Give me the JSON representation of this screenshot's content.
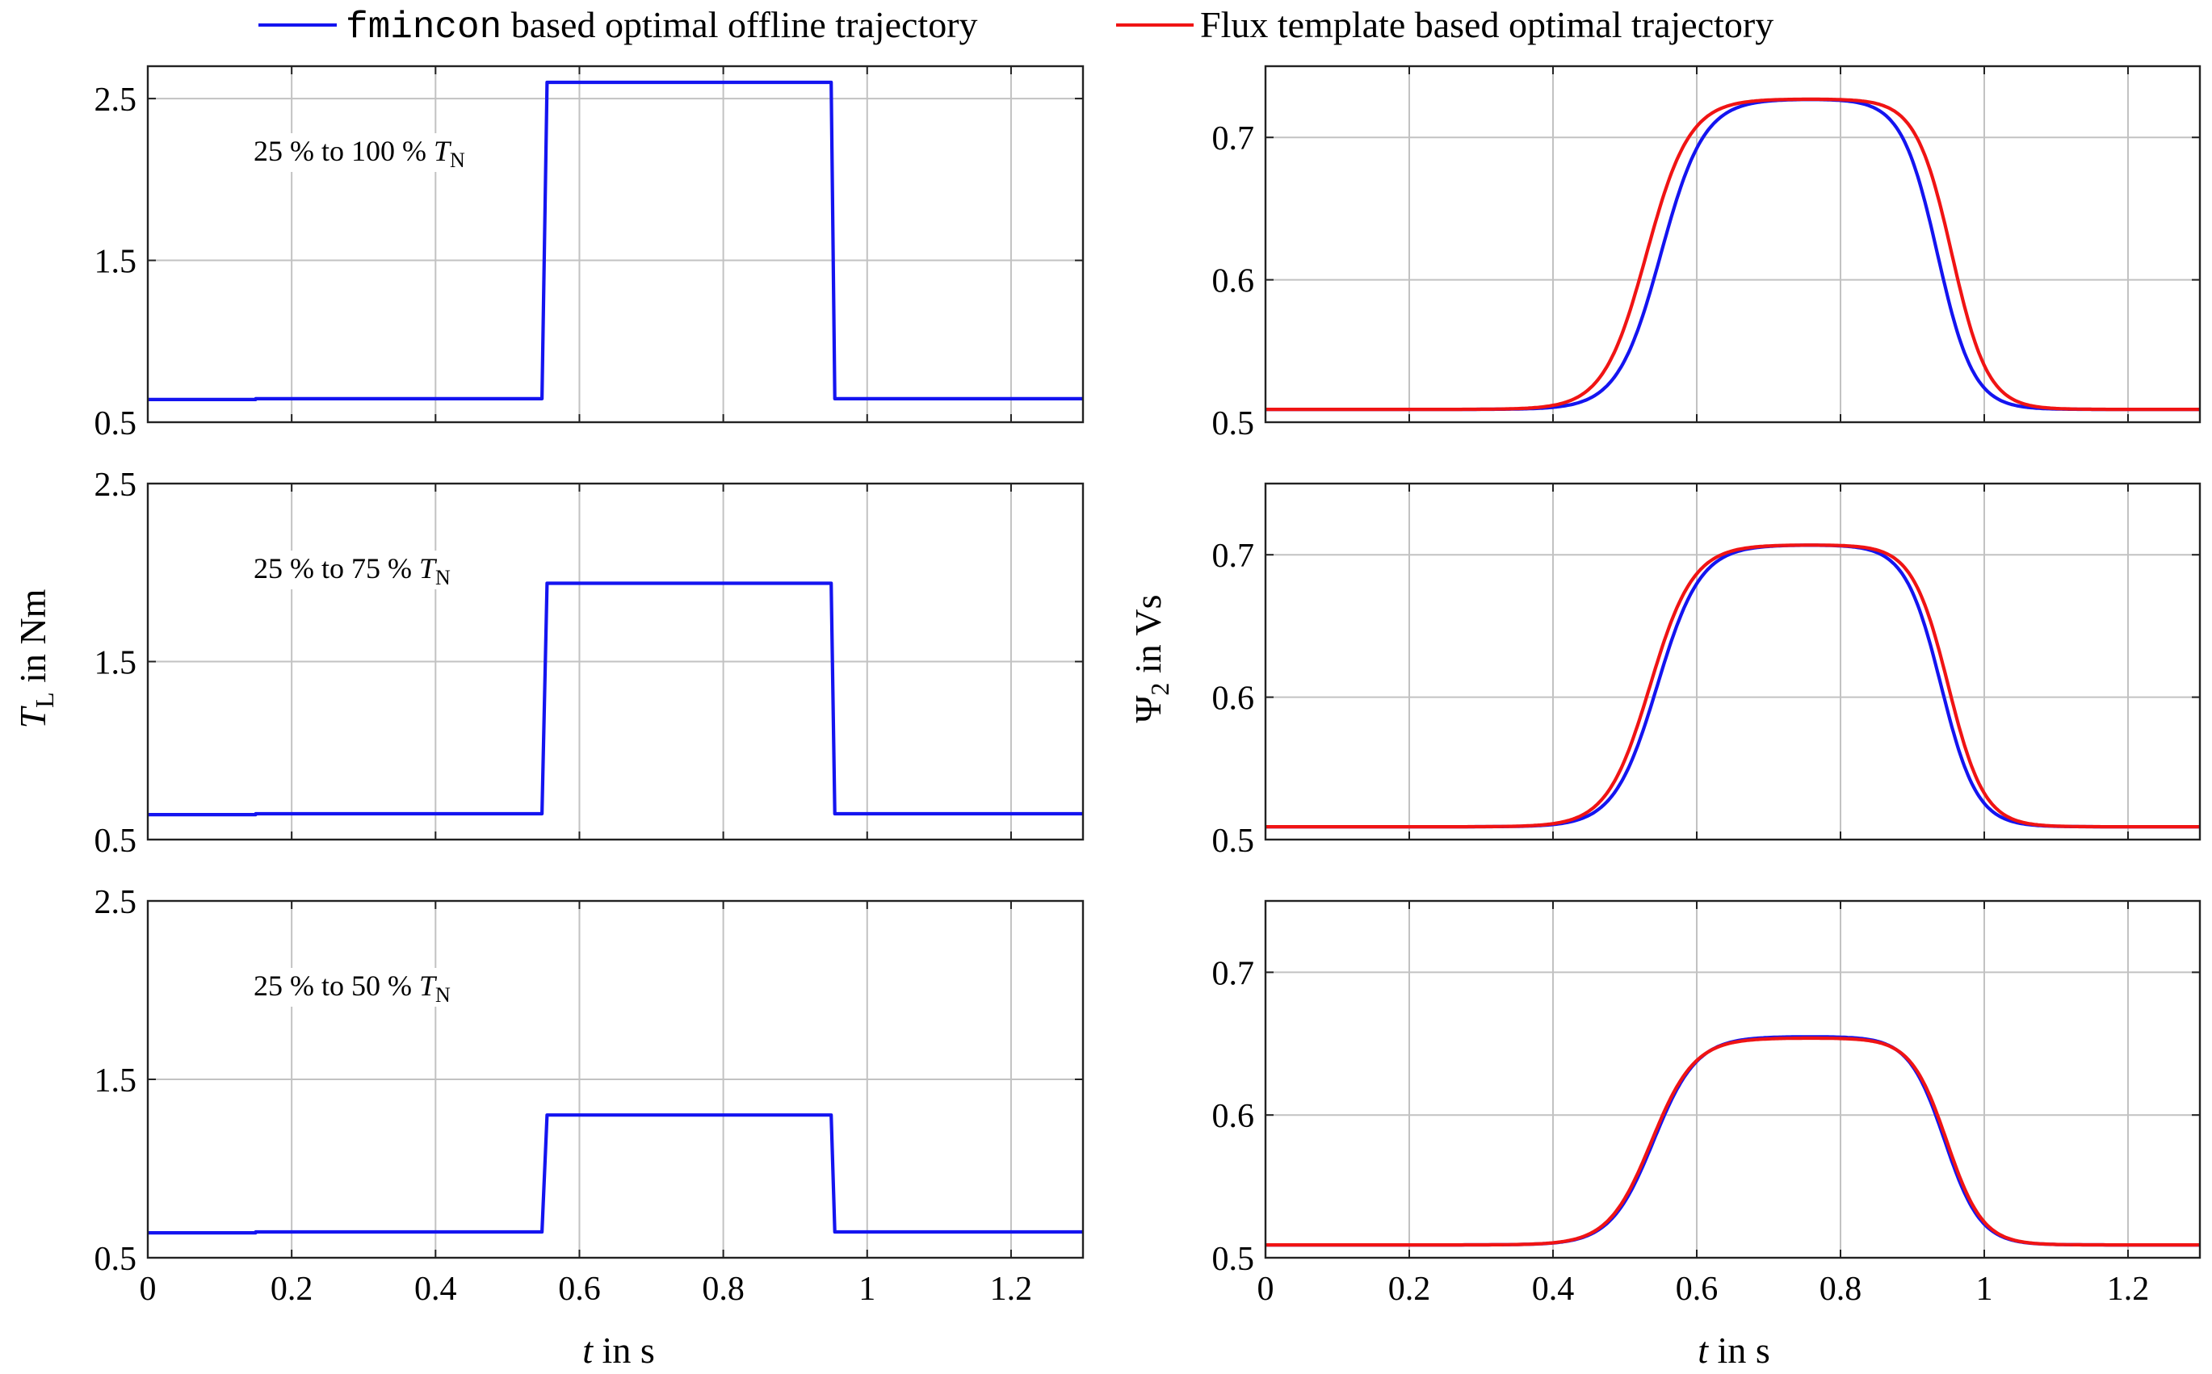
{
  "legend": {
    "entries": [
      {
        "name": "fmincon",
        "mono_part": "fmincon",
        "text_part": " based optimal offline trajectory",
        "color": "#1414f0"
      },
      {
        "name": "flux",
        "text_part": "Flux template based optimal trajectory",
        "color": "#f01414"
      }
    ]
  },
  "colors": {
    "blue": "#1414f0",
    "red": "#f01414"
  },
  "left_ylabel": {
    "main": "T",
    "sub": "L",
    "rest": " in Nm"
  },
  "right_ylabel": {
    "main": "Ψ",
    "sub": "2",
    "rest": " in Vs"
  },
  "xlabel": {
    "var": "t",
    "rest": " in s"
  },
  "chart_data": [
    {
      "id": "torque_100",
      "type": "line",
      "column": "left",
      "row": 0,
      "annotation": {
        "text": "25 % to 100 % ",
        "sym": "T",
        "sub": "N"
      },
      "xlim": [
        0,
        1.3
      ],
      "ylim": [
        0.5,
        2.7
      ],
      "yticks": [
        "0.5",
        "1.5",
        "2.5"
      ],
      "xticks": [
        "0",
        "0.2",
        "0.4",
        "0.6",
        "0.8",
        "1",
        "1.2"
      ],
      "series": [
        {
          "name": "fmincon",
          "color": "blue",
          "x": [
            0,
            0.15,
            0.15,
            0.548,
            0.555,
            0.95,
            0.955,
            1.3
          ],
          "y": [
            0.64,
            0.64,
            0.645,
            0.645,
            2.6,
            2.6,
            0.645,
            0.645
          ]
        }
      ]
    },
    {
      "id": "flux_100",
      "type": "line",
      "column": "right",
      "row": 0,
      "xlim": [
        0,
        1.3
      ],
      "ylim": [
        0.5,
        0.75
      ],
      "yticks": [
        "0.5",
        "0.6",
        "0.7"
      ],
      "xticks": [
        "0",
        "0.2",
        "0.4",
        "0.6",
        "0.8",
        "1",
        "1.2"
      ],
      "series": [
        {
          "name": "fmincon",
          "color": "blue",
          "low": 0.509,
          "high": 0.727,
          "rise_t": 0.55,
          "rise_w": 0.03,
          "fall_t": 0.935,
          "fall_w": 0.025
        },
        {
          "name": "flux",
          "color": "red",
          "low": 0.509,
          "high": 0.727,
          "rise_t": 0.53,
          "rise_w": 0.03,
          "fall_t": 0.955,
          "fall_w": 0.025
        }
      ]
    },
    {
      "id": "torque_75",
      "type": "line",
      "column": "left",
      "row": 1,
      "annotation": {
        "text": "25 % to 75 % ",
        "sym": "T",
        "sub": "N"
      },
      "xlim": [
        0,
        1.3
      ],
      "ylim": [
        0.5,
        2.5
      ],
      "yticks": [
        "0.5",
        "1.5",
        "2.5"
      ],
      "xticks": [
        "0",
        "0.2",
        "0.4",
        "0.6",
        "0.8",
        "1",
        "1.2"
      ],
      "series": [
        {
          "name": "fmincon",
          "color": "blue",
          "x": [
            0,
            0.15,
            0.15,
            0.548,
            0.555,
            0.95,
            0.955,
            1.3
          ],
          "y": [
            0.64,
            0.64,
            0.645,
            0.645,
            1.94,
            1.94,
            0.645,
            0.645
          ]
        }
      ]
    },
    {
      "id": "flux_75",
      "type": "line",
      "column": "right",
      "row": 1,
      "xlim": [
        0,
        1.3
      ],
      "ylim": [
        0.5,
        0.75
      ],
      "yticks": [
        "0.5",
        "0.6",
        "0.7"
      ],
      "xticks": [
        "0",
        "0.2",
        "0.4",
        "0.6",
        "0.8",
        "1",
        "1.2"
      ],
      "series": [
        {
          "name": "fmincon",
          "color": "blue",
          "low": 0.509,
          "high": 0.707,
          "rise_t": 0.545,
          "rise_w": 0.03,
          "fall_t": 0.94,
          "fall_w": 0.025
        },
        {
          "name": "flux",
          "color": "red",
          "low": 0.509,
          "high": 0.707,
          "rise_t": 0.535,
          "rise_w": 0.03,
          "fall_t": 0.95,
          "fall_w": 0.025
        }
      ]
    },
    {
      "id": "torque_50",
      "type": "line",
      "column": "left",
      "row": 2,
      "annotation": {
        "text": "25 % to 50 % ",
        "sym": "T",
        "sub": "N"
      },
      "xlim": [
        0,
        1.3
      ],
      "ylim": [
        0.5,
        2.5
      ],
      "yticks": [
        "0.5",
        "1.5",
        "2.5"
      ],
      "xticks": [
        "0",
        "0.2",
        "0.4",
        "0.6",
        "0.8",
        "1",
        "1.2"
      ],
      "series": [
        {
          "name": "fmincon",
          "color": "blue",
          "x": [
            0,
            0.15,
            0.15,
            0.548,
            0.555,
            0.95,
            0.955,
            1.3
          ],
          "y": [
            0.64,
            0.64,
            0.645,
            0.645,
            1.3,
            1.3,
            0.645,
            0.645
          ]
        }
      ]
    },
    {
      "id": "flux_50",
      "type": "line",
      "column": "right",
      "row": 2,
      "xlim": [
        0,
        1.3
      ],
      "ylim": [
        0.5,
        0.75
      ],
      "yticks": [
        "0.5",
        "0.6",
        "0.7"
      ],
      "xticks": [
        "0",
        "0.2",
        "0.4",
        "0.6",
        "0.8",
        "1",
        "1.2"
      ],
      "series": [
        {
          "name": "fmincon",
          "color": "blue",
          "low": 0.509,
          "high": 0.655,
          "rise_t": 0.54,
          "rise_w": 0.03,
          "fall_t": 0.945,
          "fall_w": 0.025
        },
        {
          "name": "flux",
          "color": "red",
          "low": 0.509,
          "high": 0.654,
          "rise_t": 0.537,
          "rise_w": 0.03,
          "fall_t": 0.948,
          "fall_w": 0.025
        }
      ]
    }
  ]
}
